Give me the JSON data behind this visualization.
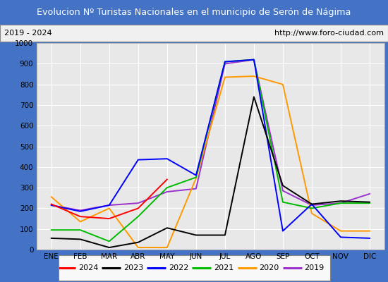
{
  "title": "Evolucion Nº Turistas Nacionales en el municipio de Serón de Nágima",
  "subtitle_left": "2019 - 2024",
  "subtitle_right": "http://www.foro-ciudad.com",
  "months": [
    "ENE",
    "FEB",
    "MAR",
    "ABR",
    "MAY",
    "JUN",
    "JUL",
    "AGO",
    "SEP",
    "OCT",
    "NOV",
    "DIC"
  ],
  "ylim": [
    0,
    1000
  ],
  "yticks": [
    0,
    100,
    200,
    300,
    400,
    500,
    600,
    700,
    800,
    900,
    1000
  ],
  "series": {
    "2024": {
      "color": "#ff0000",
      "data": [
        220,
        160,
        150,
        200,
        340,
        null,
        null,
        null,
        null,
        null,
        null,
        null
      ]
    },
    "2023": {
      "color": "#000000",
      "data": [
        55,
        50,
        10,
        35,
        105,
        70,
        70,
        740,
        310,
        220,
        235,
        230
      ]
    },
    "2022": {
      "color": "#0000ff",
      "data": [
        215,
        185,
        215,
        435,
        440,
        360,
        910,
        920,
        90,
        220,
        60,
        55
      ]
    },
    "2021": {
      "color": "#00bb00",
      "data": [
        95,
        95,
        40,
        160,
        300,
        350,
        910,
        920,
        230,
        200,
        225,
        225
      ]
    },
    "2020": {
      "color": "#ff9900",
      "data": [
        255,
        135,
        200,
        10,
        10,
        345,
        835,
        840,
        800,
        175,
        90,
        90
      ]
    },
    "2019": {
      "color": "#9933cc",
      "data": [
        215,
        190,
        215,
        225,
        280,
        295,
        900,
        920,
        285,
        215,
        225,
        270
      ]
    }
  },
  "series_order": [
    "2019",
    "2020",
    "2021",
    "2022",
    "2023",
    "2024"
  ],
  "legend_order": [
    "2024",
    "2023",
    "2022",
    "2021",
    "2020",
    "2019"
  ],
  "title_bg": "#4472c4",
  "title_color": "#ffffff",
  "subtitle_bg": "#f0f0f0",
  "subtitle_color": "#000000",
  "plot_bg": "#e8e8e8",
  "grid_color": "#ffffff",
  "border_color": "#888888"
}
